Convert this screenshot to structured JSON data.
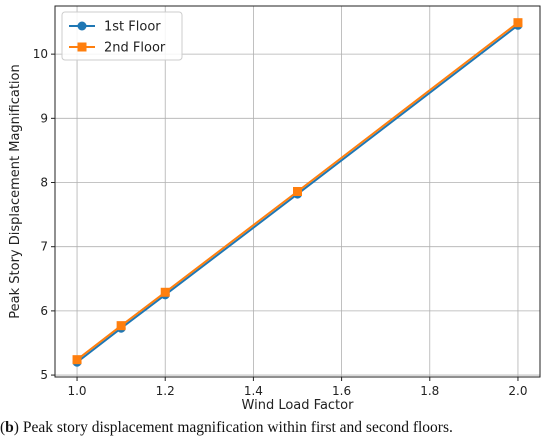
{
  "chart_data": {
    "type": "line",
    "x": [
      1.0,
      1.1,
      1.2,
      1.5,
      2.0
    ],
    "series": [
      {
        "name": "1st Floor",
        "values": [
          5.2,
          5.73,
          6.25,
          7.82,
          10.45
        ],
        "color": "#1f77b4",
        "marker": "circle"
      },
      {
        "name": "2nd Floor",
        "values": [
          5.24,
          5.77,
          6.29,
          7.86,
          10.49
        ],
        "color": "#ff7f0e",
        "marker": "square"
      }
    ],
    "xlabel": "Wind Load Factor",
    "ylabel": "Peak Story Displacement Magnification",
    "xlim": [
      0.95,
      2.05
    ],
    "ylim": [
      4.97,
      10.75
    ],
    "xticks": [
      1.0,
      1.2,
      1.4,
      1.6,
      1.8,
      2.0
    ],
    "xtick_labels": [
      "1.0",
      "1.2",
      "1.4",
      "1.6",
      "1.8",
      "2.0"
    ],
    "yticks": [
      5,
      6,
      7,
      8,
      9,
      10
    ],
    "ytick_labels": [
      "5",
      "6",
      "7",
      "8",
      "9",
      "10"
    ],
    "grid": true,
    "legend_position": "top-left"
  },
  "caption": {
    "prefix": "(",
    "letter": "b",
    "text": ") Peak story displacement magnification within first and second floors."
  }
}
